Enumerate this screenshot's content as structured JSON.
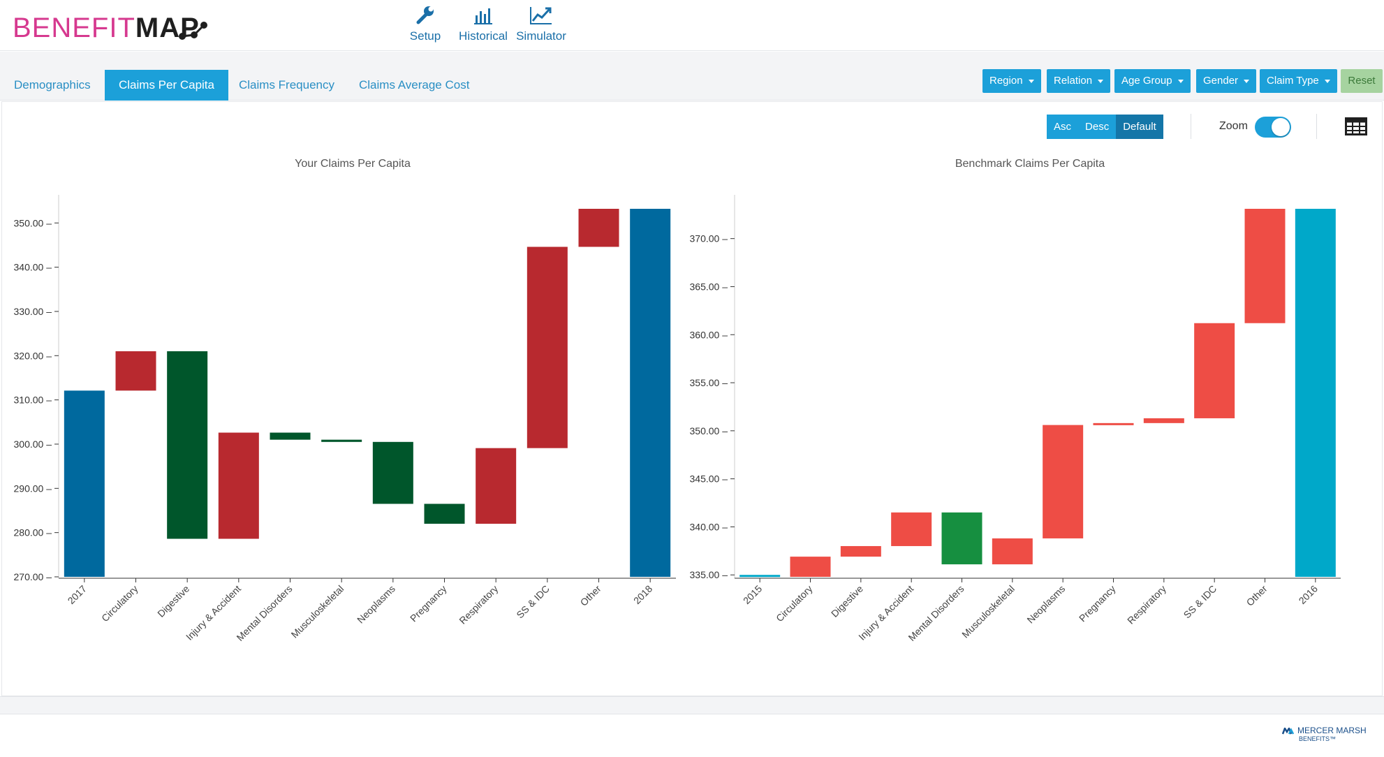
{
  "app": {
    "logo_part1": "BENEFIT",
    "logo_part2": "MAP",
    "logo_dots_icon": "molecule-dots-icon"
  },
  "nav_tools": [
    {
      "label": "Setup",
      "icon": "wrench-icon"
    },
    {
      "label": "Historical",
      "icon": "bar-chart-icon"
    },
    {
      "label": "Simulator",
      "icon": "line-chart-icon"
    }
  ],
  "tabs": [
    {
      "label": "Demographics",
      "active": false
    },
    {
      "label": "Claims Per Capita",
      "active": true
    },
    {
      "label": "Claims Frequency",
      "active": false
    },
    {
      "label": "Claims Average Cost",
      "active": false
    }
  ],
  "filters": [
    {
      "label": "Region"
    },
    {
      "label": "Relation"
    },
    {
      "label": "Age Group"
    },
    {
      "label": "Gender"
    },
    {
      "label": "Claim Type"
    }
  ],
  "reset_label": "Reset",
  "sort": {
    "asc": "Asc",
    "desc": "Desc",
    "default": "Default",
    "selected": "Default"
  },
  "zoom": {
    "label": "Zoom",
    "enabled": true
  },
  "table_view_icon": "table-grid-icon",
  "colors": {
    "accent": "#1ca0d9",
    "logo_pink": "#d6398f",
    "your_total": "#00699e",
    "your_increase": "#b8292f",
    "your_decrease": "#00562b",
    "bench_total": "#00a8c9",
    "bench_increase": "#ee4d45",
    "bench_decrease": "#168f40"
  },
  "chart_data": [
    {
      "type": "bar",
      "subtype": "waterfall",
      "title": "Your Claims Per Capita",
      "categories": [
        "2017",
        "Circulatory",
        "Digestive",
        "Injury & Accident",
        "Mental Disorders",
        "Musculoskeletal",
        "Neoplasms",
        "Pregnancy",
        "Respiratory",
        "SS & IDC",
        "Other",
        "2018"
      ],
      "bars": [
        {
          "start": 270,
          "end": 312.1,
          "kind": "total"
        },
        {
          "start": 312.1,
          "end": 321.0,
          "kind": "increase"
        },
        {
          "start": 321.0,
          "end": 278.6,
          "kind": "decrease"
        },
        {
          "start": 278.6,
          "end": 302.6,
          "kind": "increase"
        },
        {
          "start": 302.6,
          "end": 301.0,
          "kind": "decrease"
        },
        {
          "start": 301.0,
          "end": 300.5,
          "kind": "decrease"
        },
        {
          "start": 300.5,
          "end": 286.5,
          "kind": "decrease"
        },
        {
          "start": 286.5,
          "end": 282.0,
          "kind": "decrease"
        },
        {
          "start": 282.0,
          "end": 299.1,
          "kind": "increase"
        },
        {
          "start": 299.1,
          "end": 344.6,
          "kind": "increase"
        },
        {
          "start": 344.6,
          "end": 353.2,
          "kind": "increase"
        },
        {
          "start": 270,
          "end": 353.2,
          "kind": "total"
        }
      ],
      "yticks": [
        "270.00",
        "280.00",
        "290.00",
        "300.00",
        "310.00",
        "320.00",
        "330.00",
        "340.00",
        "350.00"
      ],
      "ylim": [
        270,
        353.2
      ]
    },
    {
      "type": "bar",
      "subtype": "waterfall",
      "title": "Benchmark Claims Per Capita",
      "categories": [
        "2015",
        "Circulatory",
        "Digestive",
        "Injury & Accident",
        "Mental Disorders",
        "Musculoskeletal",
        "Neoplasms",
        "Pregnancy",
        "Respiratory",
        "SS & IDC",
        "Other",
        "2016"
      ],
      "bars": [
        {
          "start": 335,
          "end": 334.8,
          "kind": "total"
        },
        {
          "start": 334.8,
          "end": 336.9,
          "kind": "increase"
        },
        {
          "start": 336.9,
          "end": 338.0,
          "kind": "increase"
        },
        {
          "start": 338.0,
          "end": 341.5,
          "kind": "increase"
        },
        {
          "start": 341.5,
          "end": 336.1,
          "kind": "decrease"
        },
        {
          "start": 336.1,
          "end": 338.8,
          "kind": "increase"
        },
        {
          "start": 338.8,
          "end": 350.6,
          "kind": "increase"
        },
        {
          "start": 350.6,
          "end": 350.8,
          "kind": "increase"
        },
        {
          "start": 350.8,
          "end": 351.3,
          "kind": "increase"
        },
        {
          "start": 351.3,
          "end": 361.2,
          "kind": "increase"
        },
        {
          "start": 361.2,
          "end": 373.1,
          "kind": "increase"
        },
        {
          "start": 334.8,
          "end": 373.1,
          "kind": "total"
        }
      ],
      "yticks": [
        "335.00",
        "340.00",
        "345.00",
        "350.00",
        "355.00",
        "360.00",
        "365.00",
        "370.00"
      ],
      "ylim": [
        334.8,
        373.1
      ]
    }
  ],
  "footer_brand": {
    "line1": "MERCER MARSH",
    "line2": "BENEFITS™",
    "icon": "mmb-logo-icon"
  }
}
